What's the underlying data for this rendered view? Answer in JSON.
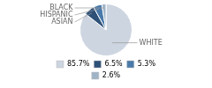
{
  "chart_data": {
    "type": "pie",
    "categories": [
      "WHITE",
      "ASIAN",
      "HISPANIC",
      "BLACK"
    ],
    "values": [
      85.7,
      6.5,
      5.3,
      2.6
    ],
    "value_labels": [
      "85.7%",
      "6.5%",
      "5.3%",
      "2.6%"
    ],
    "colors": [
      "#cdd5e0",
      "#2e5178",
      "#4a7aaa",
      "#a0b4c8"
    ],
    "legend": "bottom"
  }
}
